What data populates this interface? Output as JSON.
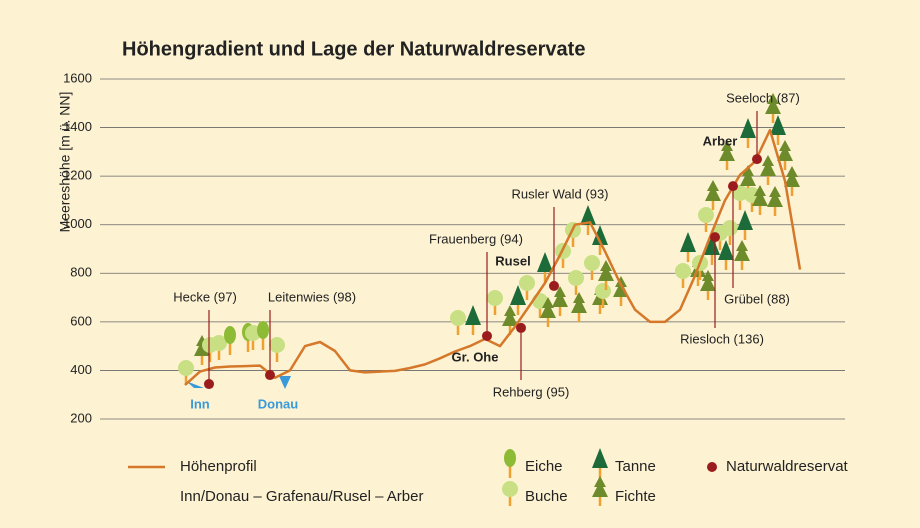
{
  "chart_data": {
    "type": "line",
    "title": "Höhengradient und Lage der Naturwaldreservate",
    "y_label": "Meereshöhe [m ü. NN]",
    "ylim": [
      200,
      1600
    ],
    "yticks": [
      200,
      400,
      600,
      800,
      1000,
      1200,
      1400,
      1600
    ],
    "grid": true,
    "series": [
      {
        "name": "Höhenprofil",
        "color": "#d5782a",
        "values": [
          340,
          395,
          412,
          416,
          418,
          420,
          370,
          400,
          500,
          517,
          480,
          400,
          392,
          395,
          398,
          410,
          425,
          450,
          478,
          500,
          530,
          500,
          580,
          670,
          760,
          875,
          1000,
          1010,
          890,
          760,
          650,
          600,
          600,
          650,
          790,
          950,
          1100,
          1205,
          1260,
          1390,
          1180,
          815
        ]
      }
    ],
    "route": "Inn/Donau – Grafenau/Rusel – Arber",
    "reserves": {
      "name": "Naturwaldreservat",
      "color": "#9b1c1c",
      "labels": [
        "Hecke (97)",
        "Leitenwies (98)",
        "Frauenberg (94)",
        "Rehberg (95)",
        "Rusler Wald (93)",
        "Riesloch (136)",
        "Grübel (88)",
        "Seeloch (87)"
      ],
      "values": [
        344,
        381,
        542,
        575,
        748,
        949,
        1159,
        1270
      ]
    },
    "places": [
      "Inn",
      "Donau",
      "Gr. Ohe",
      "Rusel",
      "Arber"
    ],
    "trees": [
      "Eiche",
      "Buche",
      "Tanne",
      "Fichte"
    ]
  }
}
